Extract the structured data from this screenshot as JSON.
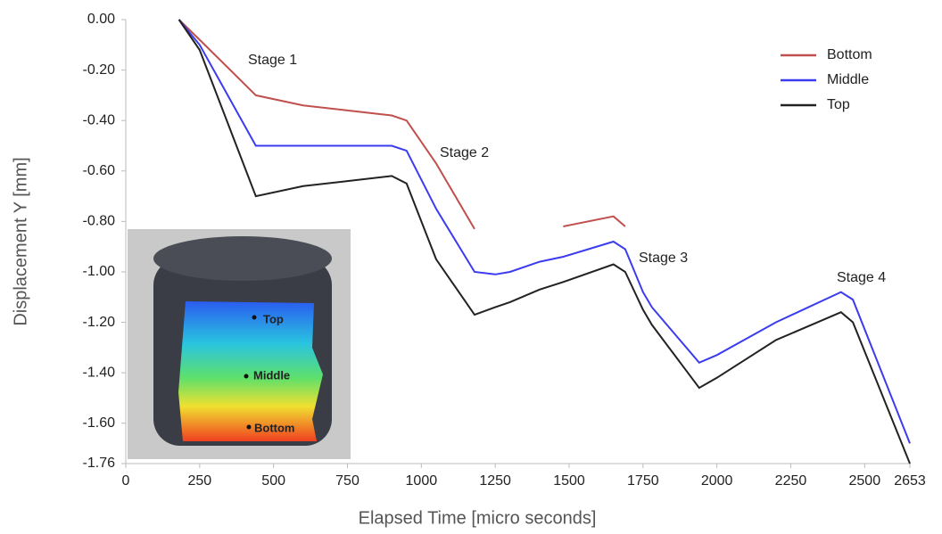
{
  "chart_data": {
    "type": "line",
    "x_label": "Elapsed Time [micro seconds]",
    "y_label": "Displacement Y [mm]",
    "x": [
      180,
      250,
      440,
      600,
      750,
      900,
      950,
      1050,
      1180,
      1250,
      1300,
      1400,
      1480,
      1650,
      1690,
      1750,
      1780,
      1940,
      2000,
      2200,
      2420,
      2460,
      2653
    ],
    "series": [
      {
        "name": "Bottom",
        "color": "#c0504d",
        "values": [
          0,
          -0.08,
          -0.3,
          -0.34,
          -0.36,
          -0.38,
          -0.4,
          -0.57,
          -0.83,
          null,
          null,
          null,
          -0.82,
          -0.78,
          -0.82,
          null,
          null,
          null,
          null,
          null,
          null,
          null,
          null
        ]
      },
      {
        "name": "Middle",
        "color": "#3b3bf0",
        "values": [
          0,
          -0.1,
          -0.5,
          -0.5,
          -0.5,
          -0.5,
          -0.52,
          -0.75,
          -1.0,
          -1.01,
          -1.0,
          -0.96,
          -0.94,
          -0.88,
          -0.91,
          -1.08,
          -1.14,
          -1.36,
          -1.33,
          -1.2,
          -1.08,
          -1.11,
          -1.68
        ]
      },
      {
        "name": "Top",
        "color": "#222222",
        "values": [
          0,
          -0.12,
          -0.7,
          -0.66,
          -0.64,
          -0.62,
          -0.65,
          -0.95,
          -1.17,
          -1.14,
          -1.12,
          -1.07,
          -1.04,
          -0.97,
          -1.0,
          -1.15,
          -1.21,
          -1.46,
          -1.42,
          -1.27,
          -1.16,
          -1.2,
          -1.76
        ]
      }
    ],
    "xlim": [
      0,
      2653
    ],
    "xticks": [
      0,
      250,
      500,
      750,
      1000,
      1250,
      1500,
      1750,
      2000,
      2250,
      2500,
      2653
    ],
    "ylim": [
      -1.76,
      0
    ],
    "yticks": [
      {
        "value": 0,
        "label": "0.00"
      },
      {
        "value": -0.2,
        "label": "-0.20"
      },
      {
        "value": -0.4,
        "label": "-0.40"
      },
      {
        "value": -0.6,
        "label": "-0.60"
      },
      {
        "value": -0.8,
        "label": "-0.80"
      },
      {
        "value": -1.0,
        "label": "-1.00"
      },
      {
        "value": -1.2,
        "label": "-1.20"
      },
      {
        "value": -1.4,
        "label": "-1.40"
      },
      {
        "value": -1.6,
        "label": "-1.60"
      },
      {
        "value": -1.76,
        "label": "-1.76"
      }
    ],
    "grid": false,
    "legend": "top-right",
    "annotations": [
      "Stage 1",
      "Stage 2",
      "Stage 3",
      "Stage 4"
    ],
    "inset_labels": [
      "Top",
      "Middle",
      "Bottom"
    ]
  }
}
